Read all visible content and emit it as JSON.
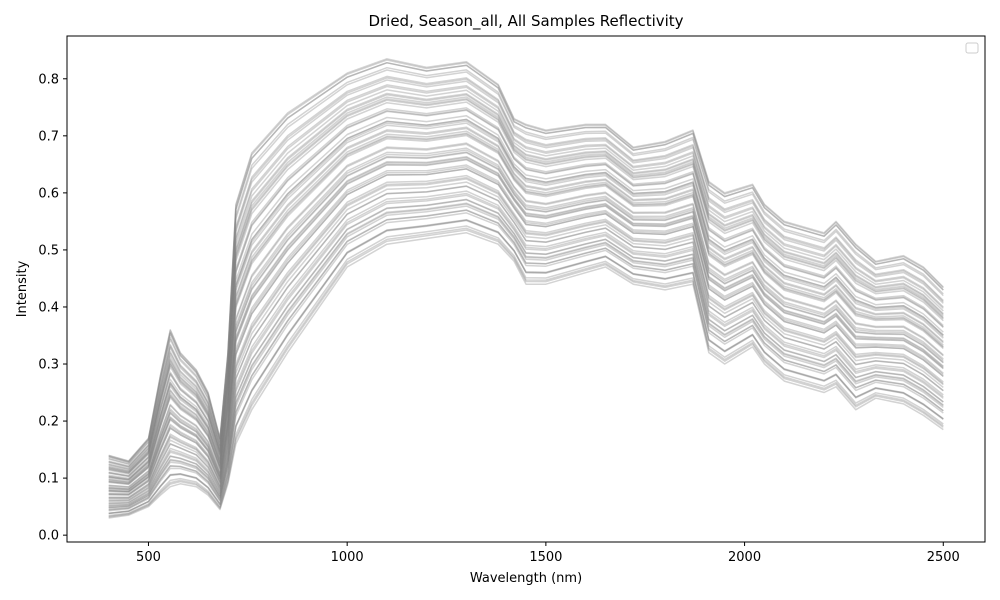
{
  "chart_data": {
    "type": "line",
    "title": "Dried, Season_all, All Samples Reflectivity",
    "xlabel": "Wavelength (nm)",
    "ylabel": "Intensity",
    "xlim": [
      295,
      2605
    ],
    "ylim": [
      -0.012,
      0.875
    ],
    "xticks": [
      500,
      1000,
      1500,
      2000,
      2500
    ],
    "yticks": [
      0.0,
      0.1,
      0.2,
      0.3,
      0.4,
      0.5,
      0.6,
      0.7,
      0.8
    ],
    "grid": false,
    "legend": {
      "placement": "top-right",
      "entries": []
    },
    "series_color": "#808080",
    "series_alpha": 0.35,
    "series_count_note": "many overlapping sample spectra",
    "wavelengths": [
      400,
      450,
      500,
      530,
      555,
      580,
      620,
      650,
      680,
      700,
      720,
      760,
      850,
      1000,
      1100,
      1200,
      1300,
      1380,
      1420,
      1450,
      1500,
      1600,
      1650,
      1720,
      1800,
      1870,
      1910,
      1950,
      2020,
      2050,
      2100,
      2200,
      2230,
      2280,
      2330,
      2400,
      2450,
      2500
    ],
    "envelope": {
      "upper": [
        0.14,
        0.13,
        0.17,
        0.28,
        0.36,
        0.32,
        0.29,
        0.25,
        0.17,
        0.32,
        0.58,
        0.67,
        0.74,
        0.81,
        0.835,
        0.82,
        0.83,
        0.79,
        0.73,
        0.72,
        0.71,
        0.72,
        0.72,
        0.68,
        0.69,
        0.71,
        0.62,
        0.6,
        0.615,
        0.58,
        0.55,
        0.53,
        0.55,
        0.51,
        0.48,
        0.49,
        0.47,
        0.435
      ],
      "lower": [
        0.03,
        0.035,
        0.05,
        0.07,
        0.085,
        0.09,
        0.085,
        0.07,
        0.045,
        0.09,
        0.16,
        0.22,
        0.32,
        0.47,
        0.51,
        0.52,
        0.53,
        0.51,
        0.48,
        0.44,
        0.44,
        0.46,
        0.47,
        0.44,
        0.43,
        0.44,
        0.32,
        0.3,
        0.33,
        0.3,
        0.27,
        0.25,
        0.26,
        0.22,
        0.24,
        0.23,
        0.21,
        0.185
      ]
    }
  }
}
